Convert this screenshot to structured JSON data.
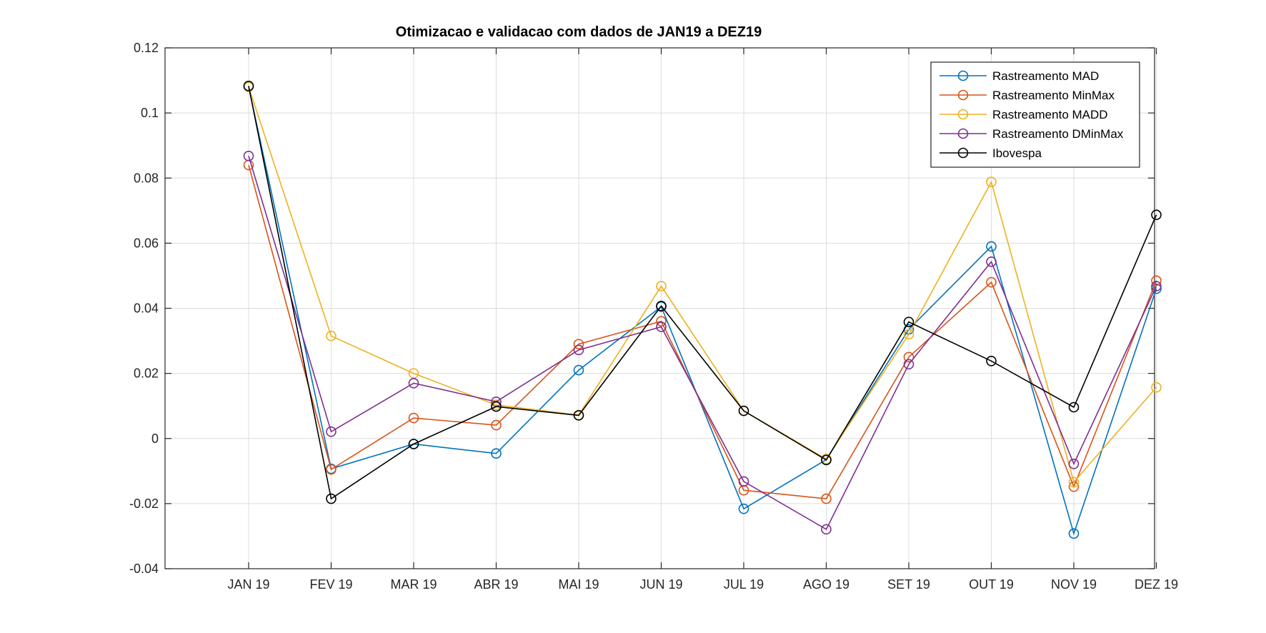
{
  "chart_data": {
    "type": "line",
    "title": "Otimizacao e validacao com dados de JAN19 a DEZ19",
    "xlabel": "",
    "ylabel": "",
    "categories": [
      "JAN 19",
      "FEV 19",
      "MAR 19",
      "ABR 19",
      "MAI 19",
      "JUN 19",
      "JUL 19",
      "AGO 19",
      "SET 19",
      "OUT 19",
      "NOV 19",
      "DEZ 19"
    ],
    "ylim": [
      -0.04,
      0.12
    ],
    "yticks": [
      -0.04,
      -0.02,
      0,
      0.02,
      0.04,
      0.06,
      0.08,
      0.1,
      0.12
    ],
    "ytick_labels": [
      "-0.04",
      "-0.02",
      "0",
      "0.02",
      "0.04",
      "0.06",
      "0.08",
      "0.1",
      "0.12"
    ],
    "grid": true,
    "legend_position": "top-right",
    "series": [
      {
        "name": "Rastreamento MAD",
        "color": "#0072BD",
        "values": [
          0.108,
          -0.0093,
          -0.0017,
          -0.0046,
          0.021,
          0.0405,
          -0.0216,
          -0.0065,
          0.0335,
          0.059,
          -0.0292,
          0.046
        ]
      },
      {
        "name": "Rastreamento MinMax",
        "color": "#D95319",
        "values": [
          0.084,
          -0.0095,
          0.0063,
          0.0041,
          0.029,
          0.036,
          -0.0159,
          -0.0185,
          0.025,
          0.048,
          -0.0148,
          0.0485
        ]
      },
      {
        "name": "Rastreamento MADD",
        "color": "#EDB120",
        "values": [
          0.108,
          0.0315,
          0.02,
          0.0103,
          0.0072,
          0.0468,
          0.0085,
          -0.0063,
          0.032,
          0.0788,
          -0.0134,
          0.0157
        ]
      },
      {
        "name": "Rastreamento DMinMax",
        "color": "#7E2F8E",
        "values": [
          0.0868,
          0.0021,
          0.017,
          0.0113,
          0.0272,
          0.0343,
          -0.0132,
          -0.0279,
          0.0228,
          0.0543,
          -0.0078,
          0.0468
        ]
      },
      {
        "name": "Ibovespa",
        "color": "#000000",
        "values": [
          0.1083,
          -0.0185,
          -0.0017,
          0.0098,
          0.0071,
          0.0407,
          0.0085,
          -0.0066,
          0.0358,
          0.0238,
          0.0096,
          0.0687
        ]
      }
    ]
  }
}
